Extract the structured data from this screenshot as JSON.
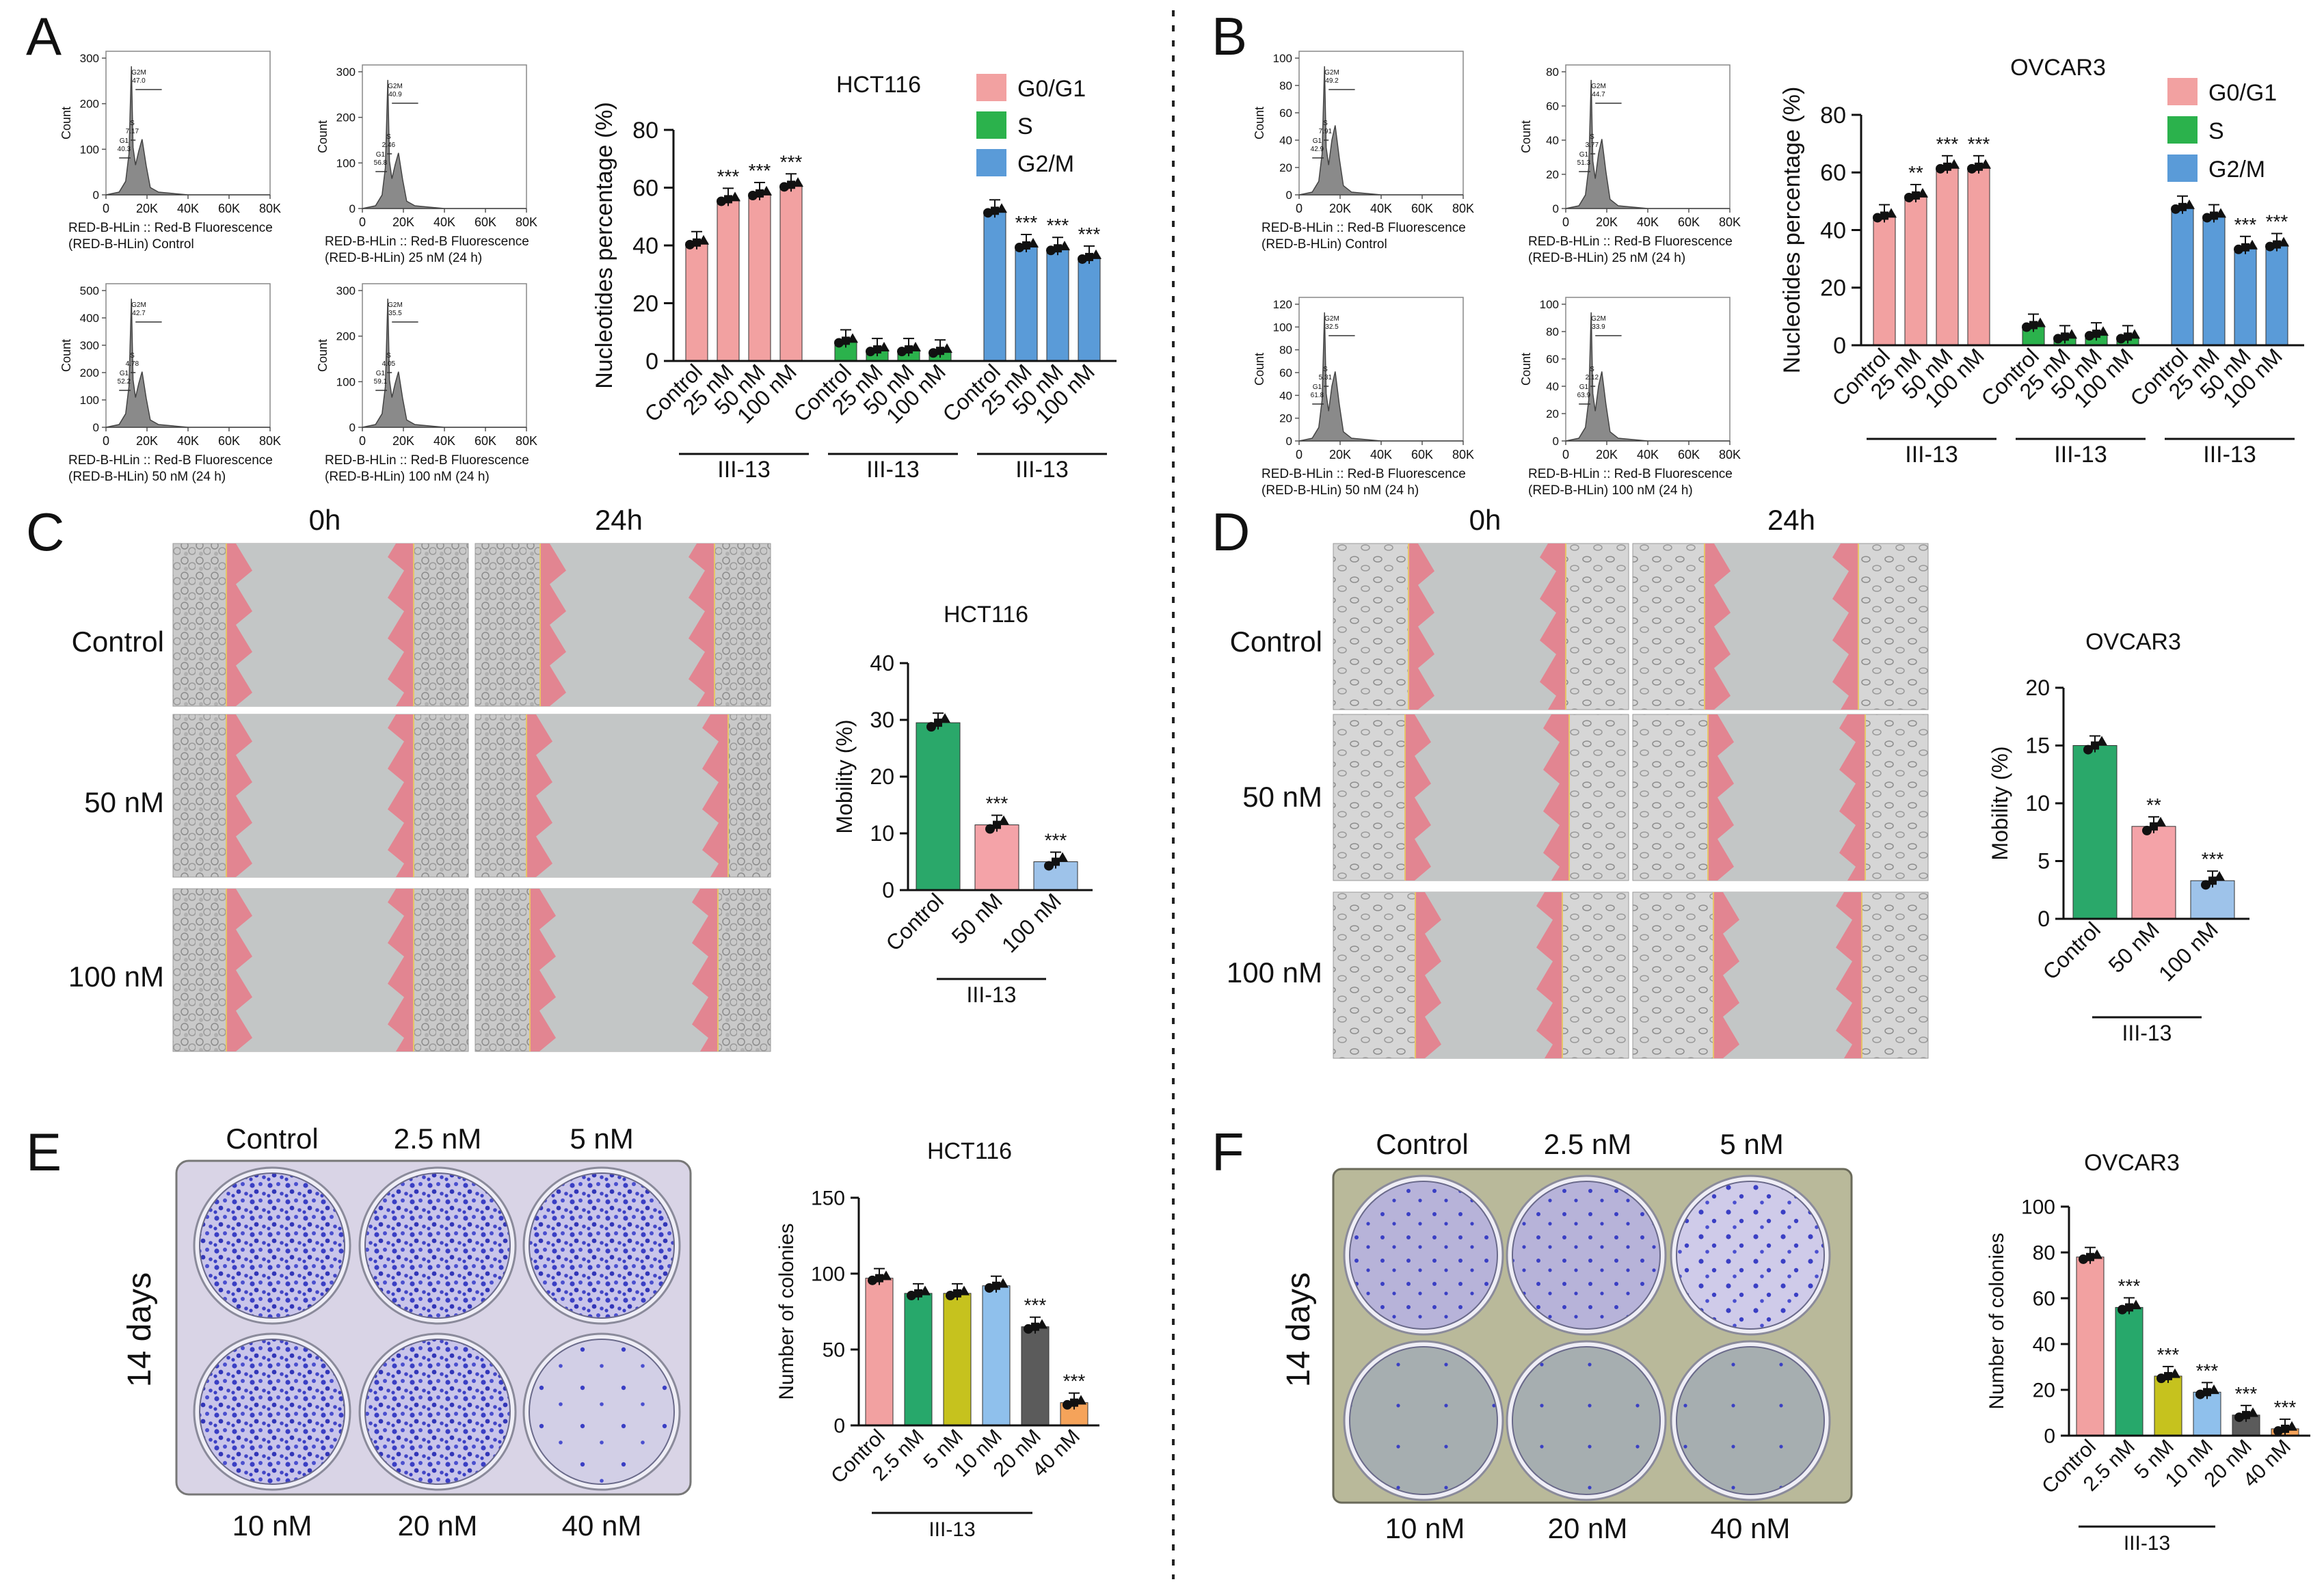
{
  "panel_letters": [
    "A",
    "B",
    "C",
    "D",
    "E",
    "F"
  ],
  "colors": {
    "g0g1": "#f2a1a1",
    "s": "#2bb24c",
    "g2m": "#5a9bd8",
    "mob_control": "#2aa86a",
    "mob_50": "#f4a3a8",
    "mob_100": "#9ec3ea",
    "col_control": "#f2a1a1",
    "col_2_5": "#27a86b",
    "col_5": "#c6c21e",
    "col_10": "#8fc0ec",
    "col_20": "#5b5b5b",
    "col_40": "#f5a35a",
    "red_overlay": "#e87987",
    "crystal_violet": "#3a3fc4"
  },
  "flow_panels": {
    "A": [
      {
        "caption": [
          "RED-B-HLin :: Red-B Fluorescence",
          "(RED-B-HLin) Control"
        ],
        "ymax": 300,
        "yticks": [
          "0",
          "100",
          "200",
          "300"
        ],
        "xticks": [
          "0",
          "20K",
          "40K",
          "60K",
          "80K"
        ],
        "gates": {
          "G2M": "47.0",
          "S": "7.17",
          "G1": "40.3"
        }
      },
      {
        "caption": [
          "RED-B-HLin :: Red-B Fluorescence",
          "(RED-B-HLin) 25 nM (24 h)"
        ],
        "ymax": 300,
        "yticks": [
          "0",
          "100",
          "200",
          "300"
        ],
        "xticks": [
          "0",
          "20K",
          "40K",
          "60K",
          "80K"
        ],
        "gates": {
          "G2M": "40.9",
          "S": "2.46",
          "G1": "56.8"
        }
      },
      {
        "caption": [
          "RED-B-HLin :: Red-B Fluorescence",
          "(RED-B-HLin) 50 nM (24 h)"
        ],
        "ymax": 500,
        "yticks": [
          "0",
          "100",
          "200",
          "300",
          "400",
          "500"
        ],
        "xticks": [
          "0",
          "20K",
          "40K",
          "60K",
          "80K"
        ],
        "gates": {
          "G2M": "42.7",
          "S": "4.78",
          "G1": "52.2"
        }
      },
      {
        "caption": [
          "RED-B-HLin :: Red-B Fluorescence",
          "(RED-B-HLin) 100 nM (24 h)"
        ],
        "ymax": 300,
        "yticks": [
          "0",
          "100",
          "200",
          "300"
        ],
        "xticks": [
          "0",
          "20K",
          "40K",
          "60K",
          "80K"
        ],
        "gates": {
          "G2M": "35.5",
          "S": "4.05",
          "G1": "59.1"
        }
      }
    ],
    "B": [
      {
        "caption": [
          "RED-B-HLin :: Red-B Fluorescence",
          "(RED-B-HLin) Control"
        ],
        "ymax": 100,
        "yticks": [
          "0",
          "20",
          "40",
          "60",
          "80",
          "100"
        ],
        "xticks": [
          "0",
          "20K",
          "40K",
          "60K",
          "80K"
        ],
        "gates": {
          "G2M": "49.2",
          "S": "7.91",
          "G1": "42.9"
        }
      },
      {
        "caption": [
          "RED-B-HLin :: Red-B Fluorescence",
          "(RED-B-HLin) 25 nM (24 h)"
        ],
        "ymax": 80,
        "yticks": [
          "0",
          "20",
          "40",
          "60",
          "80"
        ],
        "xticks": [
          "0",
          "20K",
          "40K",
          "60K",
          "80K"
        ],
        "gates": {
          "G2M": "44.7",
          "S": "3.77",
          "G1": "51.3"
        }
      },
      {
        "caption": [
          "RED-B-HLin :: Red-B Fluorescence",
          "(RED-B-HLin) 50 nM (24 h)"
        ],
        "ymax": 120,
        "yticks": [
          "0",
          "20",
          "40",
          "60",
          "80",
          "100",
          "120"
        ],
        "xticks": [
          "0",
          "20K",
          "40K",
          "60K",
          "80K"
        ],
        "gates": {
          "G2M": "32.5",
          "S": "5.31",
          "G1": "61.8"
        }
      },
      {
        "caption": [
          "RED-B-HLin :: Red-B Fluorescence",
          "(RED-B-HLin) 100 nM (24 h)"
        ],
        "ymax": 100,
        "yticks": [
          "0",
          "20",
          "40",
          "60",
          "80",
          "100"
        ],
        "xticks": [
          "0",
          "20K",
          "40K",
          "60K",
          "80K"
        ],
        "gates": {
          "G2M": "33.9",
          "S": "2.12",
          "G1": "63.9"
        }
      }
    ],
    "ylabel": "Count"
  },
  "legend": [
    "G0/G1",
    "S",
    "G2/M"
  ],
  "chart_data": [
    {
      "id": "cycle_A",
      "type": "bar",
      "title": "HCT116",
      "ylabel": "Nucleotides percentage (%)",
      "ylim": [
        0,
        80
      ],
      "yticks": [
        0,
        20,
        40,
        60,
        80
      ],
      "categories": [
        "Control",
        "25 nM",
        "50 nM",
        "100 nM"
      ],
      "group_label": "III-13",
      "series": [
        {
          "name": "G0/G1",
          "values": [
            41,
            56,
            58,
            61
          ],
          "sig": [
            "",
            "***",
            "***",
            "***"
          ]
        },
        {
          "name": "S",
          "values": [
            7,
            4,
            4,
            3.5
          ],
          "sig": [
            "",
            "",
            "",
            ""
          ]
        },
        {
          "name": "G2/M",
          "values": [
            52,
            40,
            39,
            36
          ],
          "sig": [
            "",
            "***",
            "***",
            "***"
          ]
        }
      ]
    },
    {
      "id": "cycle_B",
      "type": "bar",
      "title": "OVCAR3",
      "ylabel": "Nucleotides percentage (%)",
      "ylim": [
        0,
        80
      ],
      "yticks": [
        0,
        20,
        40,
        60,
        80
      ],
      "categories": [
        "Control",
        "25 nM",
        "50 nM",
        "100 nM"
      ],
      "group_label": "III-13",
      "series": [
        {
          "name": "G0/G1",
          "values": [
            45,
            52,
            62,
            62
          ],
          "sig": [
            "",
            "**",
            "***",
            "***"
          ]
        },
        {
          "name": "S",
          "values": [
            7,
            3,
            4,
            3
          ],
          "sig": [
            "",
            "",
            "",
            ""
          ]
        },
        {
          "name": "G2/M",
          "values": [
            48,
            45,
            34,
            35
          ],
          "sig": [
            "",
            "",
            "***",
            "***"
          ]
        }
      ]
    },
    {
      "id": "mob_C",
      "type": "bar",
      "title": "HCT116",
      "ylabel": "Mobility (%)",
      "ylim": [
        0,
        40
      ],
      "yticks": [
        0,
        10,
        20,
        30,
        40
      ],
      "categories": [
        "Control",
        "50 nM",
        "100 nM"
      ],
      "group_label": "III-13",
      "values": [
        29.5,
        11.5,
        5
      ],
      "sig": [
        "",
        "***",
        "***"
      ]
    },
    {
      "id": "mob_D",
      "type": "bar",
      "title": "OVCAR3",
      "ylabel": "Mobility (%)",
      "ylim": [
        0,
        20
      ],
      "yticks": [
        0,
        5,
        10,
        15,
        20
      ],
      "categories": [
        "Control",
        "50 nM",
        "100 nM"
      ],
      "group_label": "III-13",
      "values": [
        15,
        8,
        3.3
      ],
      "sig": [
        "",
        "**",
        "***"
      ]
    },
    {
      "id": "col_E",
      "type": "bar",
      "title": "HCT116",
      "ylabel": "Number of colonies",
      "ylim": [
        0,
        150
      ],
      "yticks": [
        0,
        50,
        100,
        150
      ],
      "categories": [
        "Control",
        "2.5 nM",
        "5 nM",
        "10 nM",
        "20 nM",
        "40 nM"
      ],
      "group_label": "III-13",
      "values": [
        97,
        87,
        87,
        92,
        65,
        15
      ],
      "sig": [
        "",
        "",
        "",
        "",
        "***",
        "***"
      ]
    },
    {
      "id": "col_F",
      "type": "bar",
      "title": "OVCAR3",
      "ylabel": "Number of colonies",
      "ylim": [
        0,
        100
      ],
      "yticks": [
        0,
        20,
        40,
        60,
        80,
        100
      ],
      "categories": [
        "Control",
        "2.5 nM",
        "5 nM",
        "10 nM",
        "20 nM",
        "40 nM"
      ],
      "group_label": "III-13",
      "values": [
        78,
        56,
        26,
        19,
        9,
        3
      ],
      "sig": [
        "",
        "***",
        "***",
        "***",
        "***",
        "***"
      ]
    }
  ],
  "wound": {
    "time_labels": [
      "0h",
      "24h"
    ],
    "row_labels": [
      "Control",
      "50 nM",
      "100 nM"
    ]
  },
  "colony": {
    "side_label": "14 days",
    "top_labels": [
      "Control",
      "2.5 nM",
      "5 nM"
    ],
    "bottom_labels": [
      "10 nM",
      "20 nM",
      "40 nM"
    ]
  }
}
